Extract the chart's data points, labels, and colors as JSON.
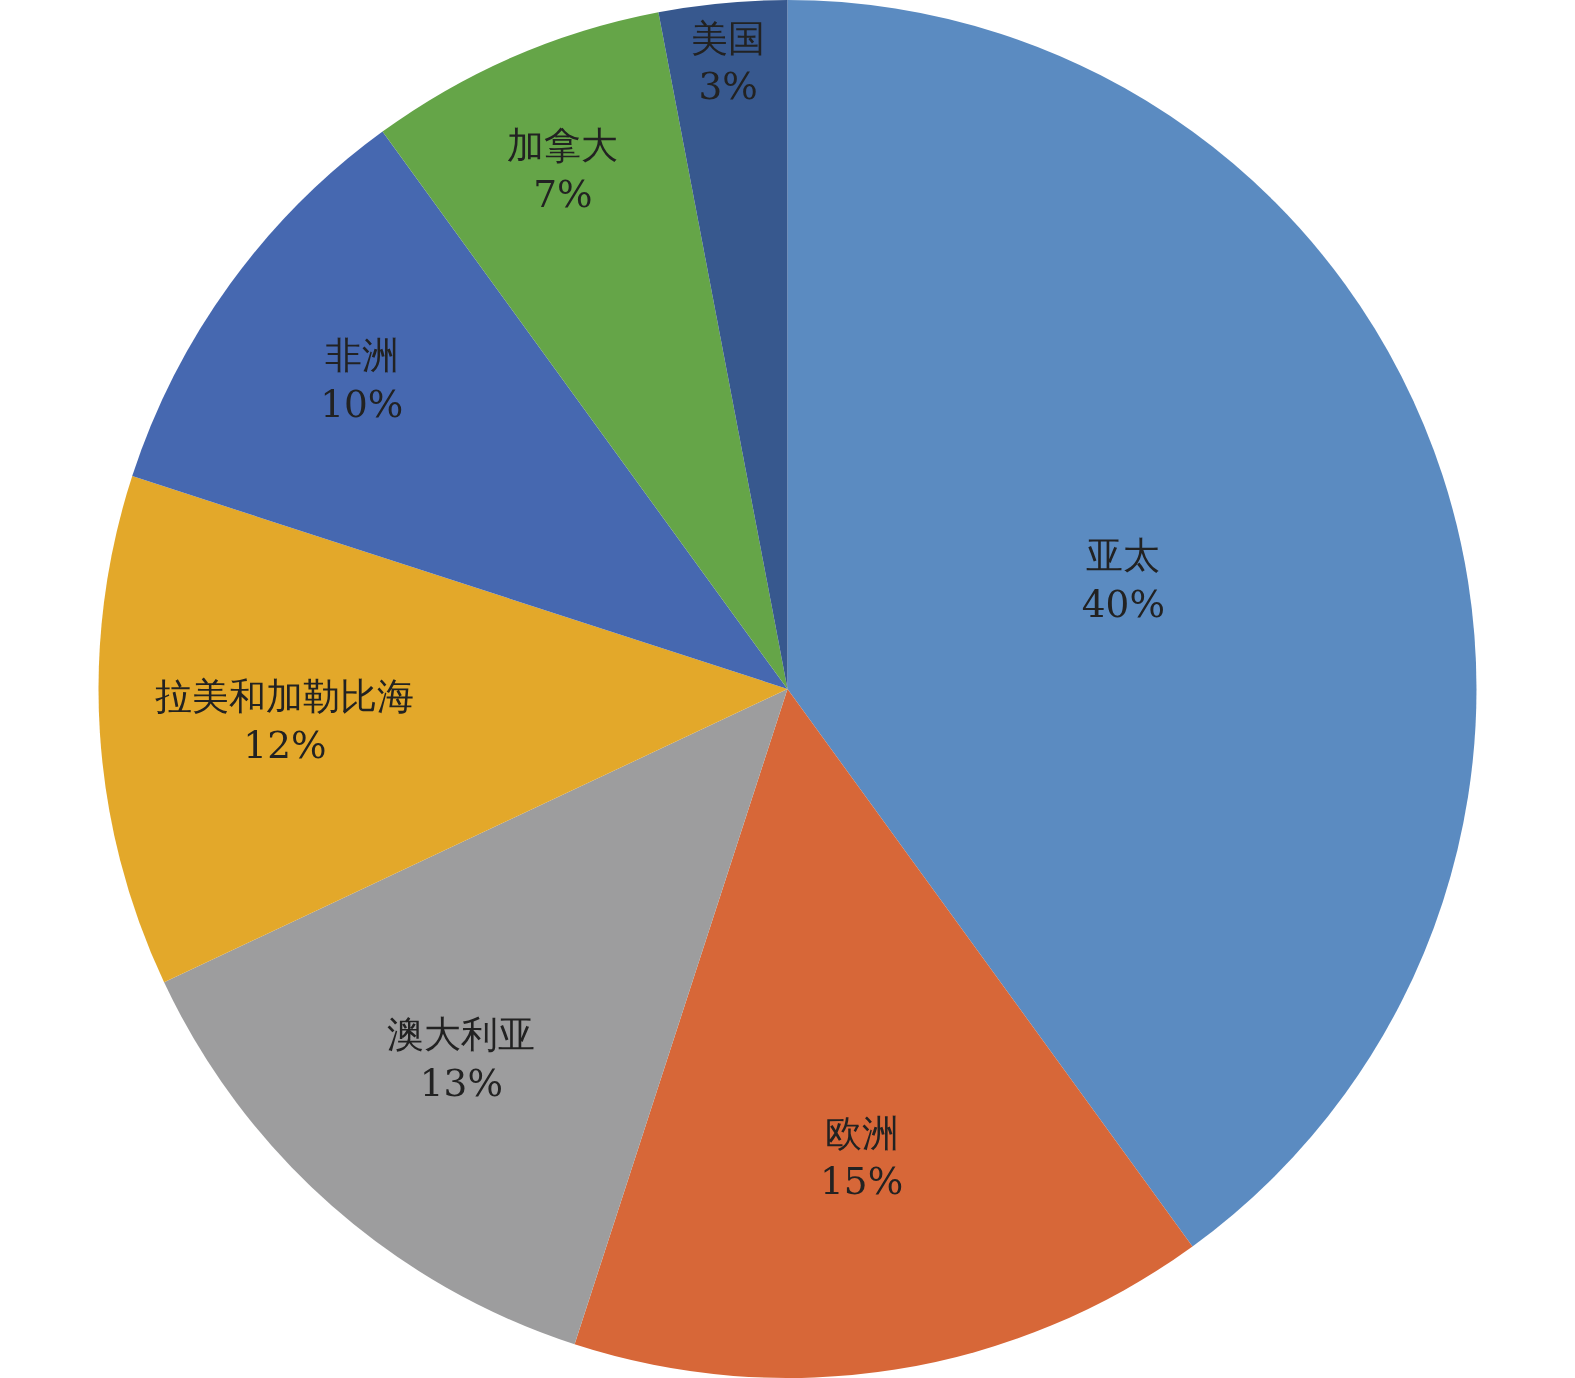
{
  "chart_data": {
    "type": "pie",
    "categories": [
      "亚太",
      "欧洲",
      "澳大利亚",
      "拉美和加勒比海",
      "非洲",
      "加拿大",
      "美国"
    ],
    "values": [
      40,
      15,
      13,
      12,
      10,
      7,
      3
    ],
    "value_labels": [
      "40%",
      "15%",
      "13%",
      "12%",
      "10%",
      "7%",
      "3%"
    ],
    "colors": [
      "#5b8bc1",
      "#d76738",
      "#9d9d9e",
      "#e3a82a",
      "#4668b0",
      "#65a548",
      "#37588e"
    ],
    "legend": false
  }
}
